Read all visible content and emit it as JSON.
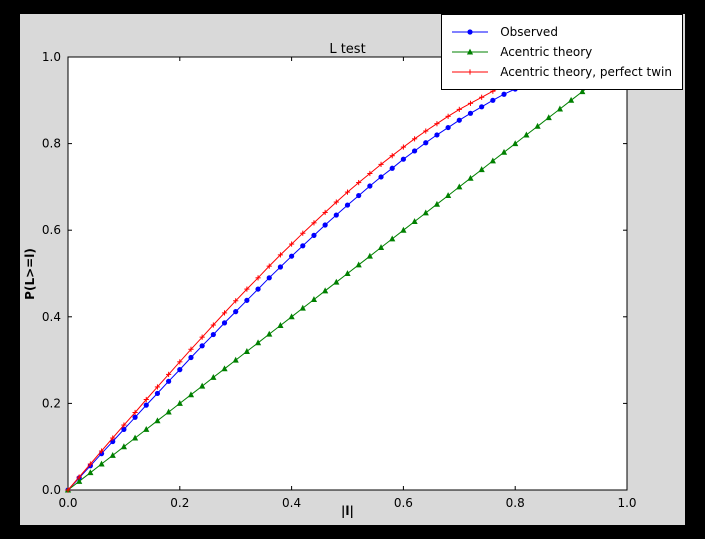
{
  "figure": {
    "window_background": "#000000",
    "figure_background": "#d9d9d9",
    "plot_background": "#ffffff"
  },
  "chart_data": {
    "type": "line",
    "title": "L test",
    "xlabel": "|l|",
    "ylabel": "P(L>=l)",
    "xlim": [
      0,
      1
    ],
    "ylim": [
      0,
      1
    ],
    "xticks": [
      "0.0",
      "0.2",
      "0.4",
      "0.6",
      "0.8",
      "1.0"
    ],
    "yticks": [
      "0.0",
      "0.2",
      "0.4",
      "0.6",
      "0.8",
      "1.0"
    ],
    "grid": false,
    "legend_position": "upper right",
    "series": [
      {
        "name": "Observed",
        "color": "#0000ff",
        "marker": "circle",
        "x": [
          0,
          0.02,
          0.04,
          0.06,
          0.08,
          0.1,
          0.12,
          0.14,
          0.16,
          0.18,
          0.2,
          0.22,
          0.24,
          0.26,
          0.28,
          0.3,
          0.32,
          0.34,
          0.36,
          0.38,
          0.4,
          0.42,
          0.44,
          0.46,
          0.48,
          0.5,
          0.52,
          0.54,
          0.56,
          0.58,
          0.6,
          0.62,
          0.64,
          0.66,
          0.68,
          0.7,
          0.72,
          0.74,
          0.76,
          0.78,
          0.8,
          0.82,
          0.84,
          0.86
        ],
        "y": [
          0,
          0.028,
          0.056,
          0.084,
          0.112,
          0.14,
          0.168,
          0.196,
          0.223,
          0.251,
          0.278,
          0.306,
          0.333,
          0.359,
          0.386,
          0.412,
          0.438,
          0.464,
          0.49,
          0.515,
          0.54,
          0.564,
          0.588,
          0.612,
          0.635,
          0.658,
          0.68,
          0.702,
          0.723,
          0.743,
          0.764,
          0.783,
          0.802,
          0.82,
          0.837,
          0.854,
          0.87,
          0.885,
          0.9,
          0.914,
          0.926,
          0.938,
          0.949,
          0.959
        ]
      },
      {
        "name": "Acentric theory",
        "color": "#008000",
        "marker": "triangle-up",
        "x": [
          0,
          0.02,
          0.04,
          0.06,
          0.08,
          0.1,
          0.12,
          0.14,
          0.16,
          0.18,
          0.2,
          0.22,
          0.24,
          0.26,
          0.28,
          0.3,
          0.32,
          0.34,
          0.36,
          0.38,
          0.4,
          0.42,
          0.44,
          0.46,
          0.48,
          0.5,
          0.52,
          0.54,
          0.56,
          0.58,
          0.6,
          0.62,
          0.64,
          0.66,
          0.68,
          0.7,
          0.72,
          0.74,
          0.76,
          0.78,
          0.8,
          0.82,
          0.84,
          0.86,
          0.88,
          0.9,
          0.92,
          0.94,
          0.96
        ],
        "y": [
          0,
          0.02,
          0.04,
          0.06,
          0.08,
          0.1,
          0.12,
          0.14,
          0.16,
          0.18,
          0.2,
          0.22,
          0.24,
          0.26,
          0.28,
          0.3,
          0.32,
          0.34,
          0.36,
          0.38,
          0.4,
          0.42,
          0.44,
          0.46,
          0.48,
          0.5,
          0.52,
          0.54,
          0.56,
          0.58,
          0.6,
          0.62,
          0.64,
          0.66,
          0.68,
          0.7,
          0.72,
          0.74,
          0.76,
          0.78,
          0.8,
          0.82,
          0.84,
          0.86,
          0.88,
          0.9,
          0.92,
          0.94,
          0.96
        ]
      },
      {
        "name": "Acentric theory, perfect twin",
        "color": "#ff0000",
        "marker": "plus",
        "x": [
          0,
          0.02,
          0.04,
          0.06,
          0.08,
          0.1,
          0.12,
          0.14,
          0.16,
          0.18,
          0.2,
          0.22,
          0.24,
          0.26,
          0.28,
          0.3,
          0.32,
          0.34,
          0.36,
          0.38,
          0.4,
          0.42,
          0.44,
          0.46,
          0.48,
          0.5,
          0.52,
          0.54,
          0.56,
          0.58,
          0.6,
          0.62,
          0.64,
          0.66,
          0.68,
          0.7,
          0.72,
          0.74,
          0.76,
          0.78,
          0.8,
          0.82,
          0.84
        ],
        "y": [
          0,
          0.03,
          0.06,
          0.09,
          0.12,
          0.15,
          0.179,
          0.209,
          0.238,
          0.267,
          0.296,
          0.325,
          0.353,
          0.381,
          0.409,
          0.437,
          0.464,
          0.49,
          0.517,
          0.543,
          0.568,
          0.593,
          0.617,
          0.641,
          0.665,
          0.688,
          0.71,
          0.731,
          0.752,
          0.772,
          0.792,
          0.811,
          0.829,
          0.846,
          0.863,
          0.879,
          0.893,
          0.907,
          0.921,
          0.933,
          0.944,
          0.954,
          0.964
        ]
      }
    ]
  }
}
